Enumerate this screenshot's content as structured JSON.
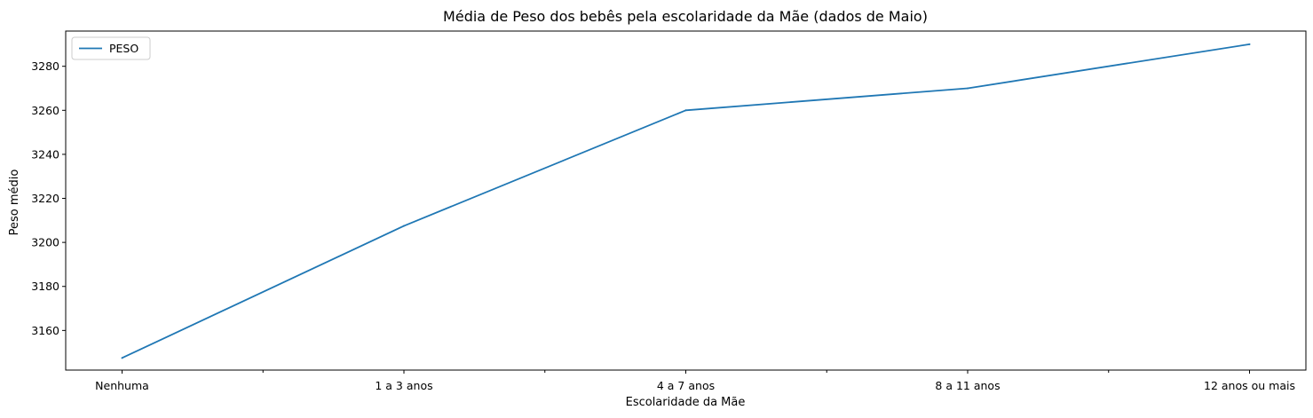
{
  "chart_data": {
    "type": "line",
    "title": "Média de Peso dos bebês pela escolaridade da Mãe (dados de Maio)",
    "xlabel": "Escolaridade da Mãe",
    "ylabel": "Peso médio",
    "categories": [
      "Nenhuma",
      "1 a 3 anos",
      "4 a 7 anos",
      "8 a 11 anos",
      "12 anos ou mais"
    ],
    "series": [
      {
        "name": "PESO",
        "color": "#1f77b4",
        "values": [
          3147.5,
          3207.5,
          3260,
          3270,
          3290
        ]
      }
    ],
    "ylim": [
      3142,
      3296
    ],
    "yticks": [
      3160,
      3180,
      3200,
      3220,
      3240,
      3260,
      3280
    ],
    "xlim": [
      -0.2,
      4.2
    ],
    "minor_xticks": [
      0.5,
      1.5,
      2.5,
      3.5
    ],
    "grid": false,
    "legend_position": "top-left"
  }
}
